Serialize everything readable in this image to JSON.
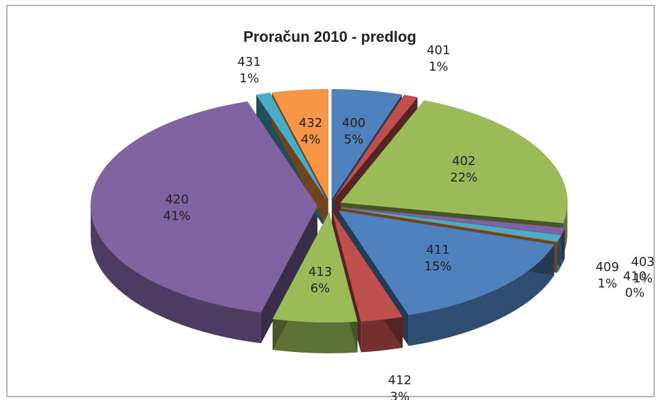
{
  "chart_data": {
    "type": "pie",
    "title": "Proračun 2010 - predlog",
    "categories": [
      "400",
      "401",
      "402",
      "403",
      "409",
      "410",
      "411",
      "412",
      "413",
      "420",
      "431",
      "432"
    ],
    "values": [
      5,
      1,
      22,
      1,
      1,
      0,
      15,
      3,
      6,
      41,
      1,
      4
    ],
    "value_labels": [
      "5%",
      "1%",
      "22%",
      "1%",
      "1%",
      "0%",
      "15%",
      "3%",
      "6%",
      "41%",
      "1%",
      "4%"
    ],
    "colors": [
      "#4f81bd",
      "#c0504d",
      "#9bbb59",
      "#8064a2",
      "#4bacc6",
      "#f79646",
      "#4f81bd",
      "#c0504d",
      "#9bbb59",
      "#8064a2",
      "#4bacc6",
      "#f79646"
    ]
  }
}
